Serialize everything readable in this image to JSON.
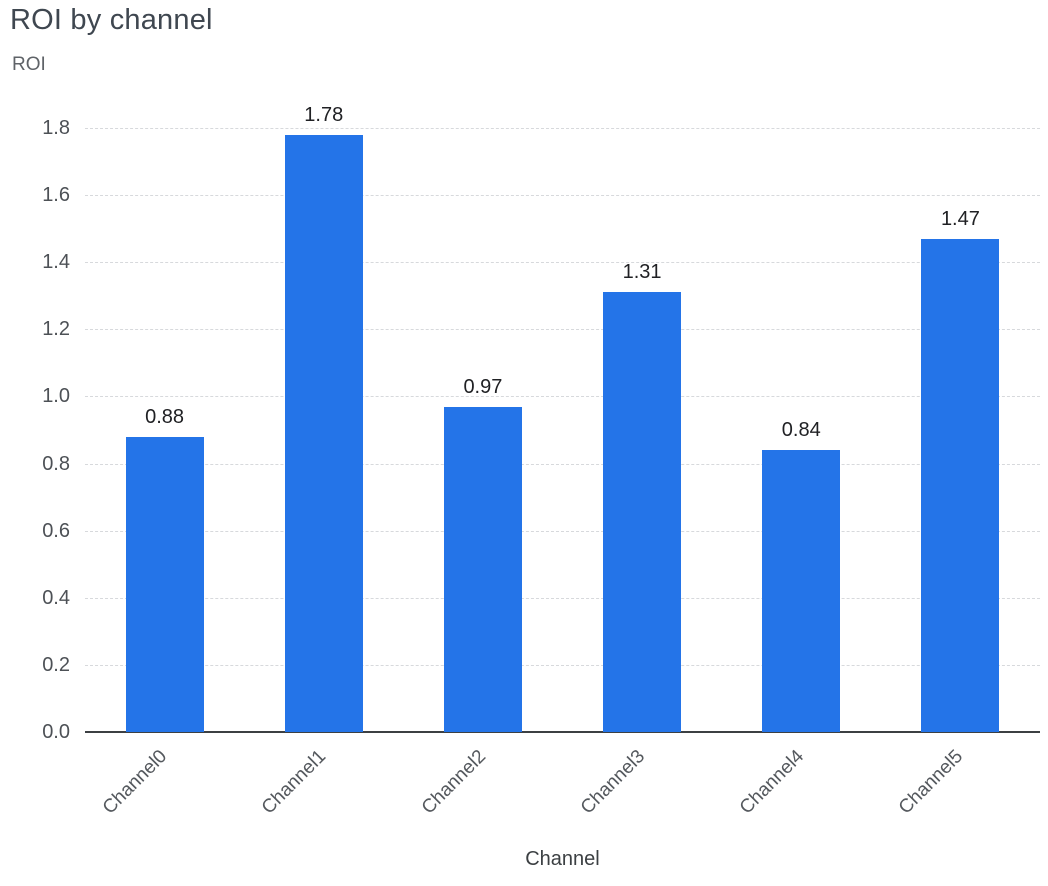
{
  "chart_data": {
    "type": "bar",
    "title": "ROI by channel",
    "xlabel": "Channel",
    "ylabel": "ROI",
    "categories": [
      "Channel0",
      "Channel1",
      "Channel2",
      "Channel3",
      "Channel4",
      "Channel5"
    ],
    "values": [
      0.88,
      1.78,
      0.97,
      1.31,
      0.84,
      1.47
    ],
    "value_labels": [
      "0.88",
      "1.78",
      "0.97",
      "1.31",
      "0.84",
      "1.47"
    ],
    "ylim": [
      0,
      1.8
    ],
    "ytick_step": 0.2,
    "ytick_labels": [
      "0.0",
      "0.2",
      "0.4",
      "0.6",
      "0.8",
      "1.0",
      "1.2",
      "1.4",
      "1.6",
      "1.8"
    ],
    "grid": {
      "horizontal": true,
      "style": "dashed",
      "color": "#d7d9dc"
    },
    "bar_color": "#2474E8",
    "axis_line_color": "#3c4043",
    "legend_position": "none"
  }
}
